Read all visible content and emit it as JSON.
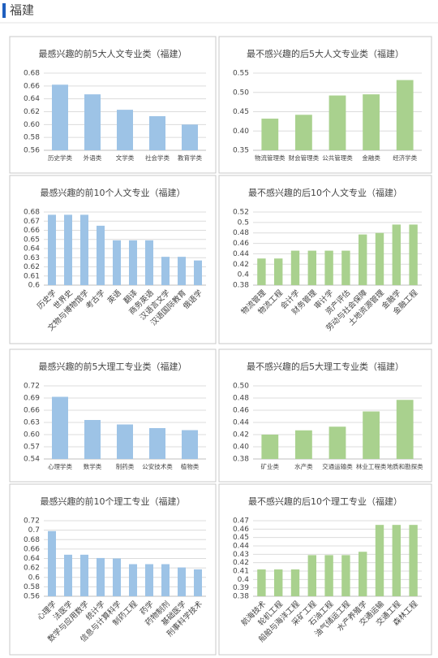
{
  "header": {
    "title": "福建"
  },
  "chart_data": [
    {
      "type": "bar",
      "title": "最感兴趣的前5大人文专业类（福建）",
      "color": "#9dc3e6",
      "grid": true,
      "categories": [
        "历史学类",
        "外语类",
        "文学类",
        "社会学类",
        "教育学类"
      ],
      "values": [
        0.662,
        0.647,
        0.623,
        0.613,
        0.6
      ],
      "ylim": [
        0.56,
        0.68
      ],
      "yticks": [
        0.56,
        0.58,
        {
          "value": 0.6,
          "label": "0.60"
        },
        0.62,
        0.64,
        0.66,
        0.68
      ]
    },
    {
      "type": "bar",
      "title": "最不感兴趣的后5大人文专业类（福建）",
      "color": "#a9d18e",
      "grid": true,
      "categories": [
        "物流管理类",
        "财会管理类",
        "公共管理类",
        "金融类",
        "经济学类"
      ],
      "values": [
        0.432,
        0.442,
        0.492,
        0.495,
        0.532
      ],
      "ylim": [
        0.35,
        0.55
      ],
      "yticks": [
        0.35,
        {
          "value": 0.4,
          "label": "0.40"
        },
        0.45,
        {
          "value": 0.5,
          "label": "0.50"
        },
        0.55
      ]
    },
    {
      "type": "bar",
      "title": "最感兴趣的前10个人文专业（福建）",
      "color": "#9dc3e6",
      "grid": true,
      "categories": [
        "历史学",
        "世界史",
        "文物与博物馆学",
        "考古学",
        "英语",
        "翻译",
        "商务英语",
        "汉语言文学",
        "汉语国际教育",
        "俄语学"
      ],
      "values": [
        0.677,
        0.677,
        0.677,
        0.665,
        0.649,
        0.649,
        0.649,
        0.631,
        0.631,
        0.627
      ],
      "ylim": [
        0.6,
        0.68
      ],
      "yticks": [
        0.6,
        0.61,
        0.62,
        0.63,
        0.64,
        0.65,
        0.66,
        0.67,
        0.68
      ]
    },
    {
      "type": "bar",
      "title": "最不感兴趣的后10个人文专业（福建）",
      "color": "#a9d18e",
      "grid": true,
      "categories": [
        "物流管理",
        "物流工程",
        "会计学",
        "财务管理",
        "审计学",
        "资产评估",
        "劳动与社会保障",
        "土地资源管理",
        "金融学",
        "金融工程"
      ],
      "values": [
        0.431,
        0.431,
        0.446,
        0.446,
        0.446,
        0.446,
        0.477,
        0.48,
        0.496,
        0.496
      ],
      "ylim": [
        0.38,
        0.52
      ],
      "yticks": [
        0.38,
        0.4,
        0.42,
        0.44,
        0.46,
        0.48,
        0.5,
        0.52
      ]
    },
    {
      "type": "bar",
      "title": "最感兴趣的前5大理工专业类（福建）",
      "color": "#9dc3e6",
      "grid": true,
      "categories": [
        "心理学类",
        "数学类",
        "制药类",
        "公安技术类",
        "植物类"
      ],
      "values": [
        0.693,
        0.636,
        0.625,
        0.616,
        0.611
      ],
      "ylim": [
        0.54,
        0.72
      ],
      "yticks": [
        0.54,
        0.57,
        {
          "value": 0.6,
          "label": "0.60"
        },
        0.63,
        0.66,
        0.69,
        0.72
      ]
    },
    {
      "type": "bar",
      "title": "最不感兴趣的后5大理工专业类（福建）",
      "color": "#a9d18e",
      "grid": true,
      "categories": [
        "矿业类",
        "水产类",
        "交通运输类",
        "林业工程类",
        "地质和勘探类"
      ],
      "values": [
        0.42,
        0.427,
        0.433,
        0.458,
        0.477
      ],
      "ylim": [
        0.38,
        0.5
      ],
      "yticks": [
        0.38,
        {
          "value": 0.4,
          "label": "0.40"
        },
        0.42,
        0.44,
        0.46,
        0.48,
        {
          "value": 0.5,
          "label": "0.50"
        }
      ]
    },
    {
      "type": "bar",
      "title": "最感兴趣的前10个理工专业（福建）",
      "color": "#9dc3e6",
      "grid": true,
      "categories": [
        "心理学",
        "法医学",
        "数学与应用数学",
        "统计学",
        "信息与计算科学",
        "制药工程",
        "药学",
        "药物制剂",
        "基础医学",
        "刑事科学技术"
      ],
      "values": [
        0.698,
        0.648,
        0.648,
        0.641,
        0.64,
        0.628,
        0.628,
        0.628,
        0.621,
        0.617
      ],
      "ylim": [
        0.56,
        0.72
      ],
      "yticks": [
        0.56,
        0.58,
        0.6,
        0.62,
        0.64,
        0.66,
        0.68,
        0.7,
        0.72
      ]
    },
    {
      "type": "bar",
      "title": "最不感兴趣的后10个理工专业（福建）",
      "color": "#a9d18e",
      "grid": true,
      "categories": [
        "航海技术",
        "轮机工程",
        "船舶与海洋工程",
        "采矿工程",
        "石油工程",
        "油气储运工程",
        "水产养殖学",
        "交通运输",
        "交通工程",
        "森林工程"
      ],
      "values": [
        0.412,
        0.412,
        0.412,
        0.429,
        0.429,
        0.429,
        0.433,
        0.465,
        0.465,
        0.465
      ],
      "ylim": [
        0.38,
        0.47
      ],
      "yticks": [
        0.38,
        0.39,
        0.4,
        0.41,
        0.42,
        0.43,
        0.44,
        0.45,
        0.46,
        0.47
      ]
    }
  ]
}
